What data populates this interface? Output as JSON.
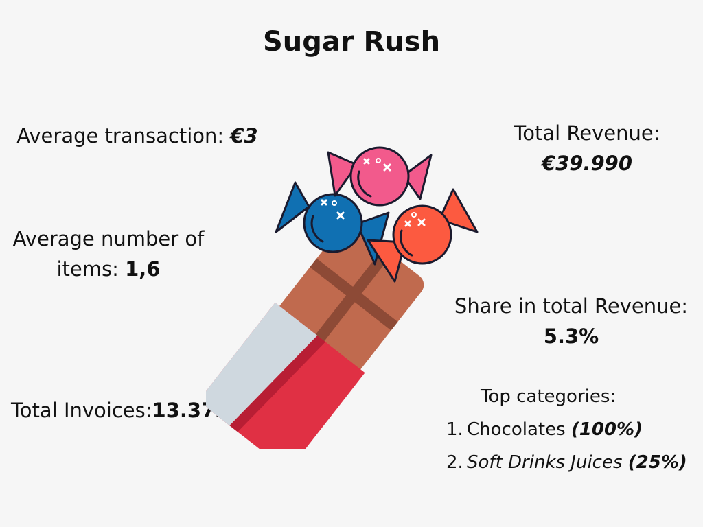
{
  "title": "Sugar Rush",
  "stats": {
    "avg_transaction": {
      "label": "Average transaction: ",
      "value": "€3"
    },
    "total_revenue": {
      "label": "Total Revenue:",
      "value": "€39.990"
    },
    "avg_items": {
      "label": "Average number of items: ",
      "value": "1,6"
    },
    "share_revenue": {
      "label": "Share in total Revenue:",
      "value": "5.3%"
    },
    "total_invoices": {
      "label": "Total Invoices:",
      "value": "13.372"
    }
  },
  "top_categories": {
    "title": "Top categories:",
    "items": [
      {
        "num": "1.",
        "name": "Chocolates",
        "pct": "(100%)"
      },
      {
        "num": "2.",
        "name": "Soft Drinks Juices",
        "pct": "(25%)"
      }
    ]
  },
  "illustration": {
    "icons": [
      "candy-pink-icon",
      "candy-blue-icon",
      "candy-orange-icon",
      "chocolate-bar-icon"
    ],
    "colors": {
      "background": "#f6f6f6",
      "candy_pink": "#f25a8c",
      "candy_blue": "#1070b2",
      "candy_orange": "#fc5a40",
      "chocolate": "#c06a4e",
      "chocolate_dark": "#8d4a36",
      "wrapper_silver": "#cfd8df",
      "wrapper_red": "#e03044",
      "wrapper_red_dark": "#b81e34"
    }
  }
}
